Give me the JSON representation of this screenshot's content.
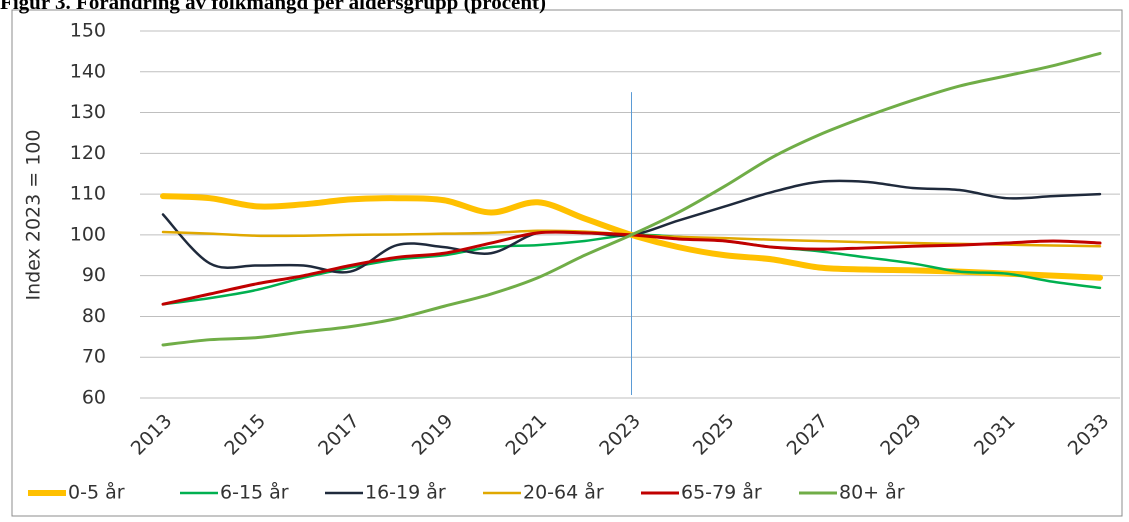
{
  "chart_data": {
    "type": "line",
    "title": "Figur 3. Förändring av folkmängd per åldersgrupp (procent)",
    "y_label": "Index 2023 = 100",
    "categories": [
      "2013",
      null,
      "2015",
      null,
      "2017",
      null,
      "2019",
      null,
      "2021",
      null,
      "2023",
      null,
      "2025",
      null,
      "2027",
      null,
      "2029",
      null,
      "2031",
      null,
      "2033"
    ],
    "ylim": [
      60,
      150
    ],
    "yticks": [
      60,
      70,
      80,
      90,
      100,
      110,
      120,
      130,
      140,
      150
    ],
    "grid": true,
    "legend": "bottom",
    "reference_line": {
      "category": 10,
      "top": 135,
      "color": "#5b9bd5"
    },
    "series": [
      {
        "name": "0-5 år",
        "color": "#ffc000",
        "width": 6,
        "values": [
          109.5,
          109,
          107,
          107.5,
          108.7,
          109,
          108.5,
          105.5,
          108,
          104,
          100,
          97,
          95,
          94,
          92,
          91.5,
          91.3,
          91,
          90.5,
          90,
          89.5
        ]
      },
      {
        "name": "6-15 år",
        "color": "#00b050",
        "width": 2.5,
        "values": [
          83,
          84.5,
          86.5,
          89.5,
          92,
          94,
          95,
          97,
          97.5,
          98.5,
          100,
          99.5,
          98.5,
          97,
          96,
          94.5,
          93,
          91,
          90.5,
          88.5,
          87
        ]
      },
      {
        "name": "16-19 år",
        "color": "#1f2a3c",
        "width": 2.5,
        "values": [
          105,
          93,
          92.5,
          92.5,
          91,
          97.5,
          97,
          95.5,
          100.5,
          100.5,
          100,
          103.5,
          107,
          110.5,
          113,
          113,
          111.5,
          111,
          109,
          109.5,
          110
        ]
      },
      {
        "name": "20-64 år",
        "color": "#e0a800",
        "width": 2.5,
        "values": [
          100.7,
          100.3,
          99.8,
          99.8,
          100,
          100.1,
          100.3,
          100.5,
          101,
          100.8,
          100,
          99.5,
          99.2,
          98.8,
          98.5,
          98.2,
          98,
          97.8,
          97.6,
          97.4,
          97.2
        ]
      },
      {
        "name": "65-79 år",
        "color": "#c00000",
        "width": 3,
        "values": [
          83,
          85.5,
          88,
          90,
          92.5,
          94.5,
          95.5,
          98,
          100.5,
          100.5,
          100,
          99,
          98.5,
          97,
          96.5,
          96.8,
          97.2,
          97.5,
          98,
          98.5,
          98
        ]
      },
      {
        "name": "80+ år",
        "color": "#70ad47",
        "width": 3,
        "values": [
          73,
          74.3,
          74.8,
          76.2,
          77.5,
          79.5,
          82.5,
          85.5,
          89.5,
          95,
          100,
          105.5,
          112,
          119,
          124.5,
          129,
          133,
          136.5,
          139,
          141.5,
          144.5
        ]
      }
    ]
  }
}
